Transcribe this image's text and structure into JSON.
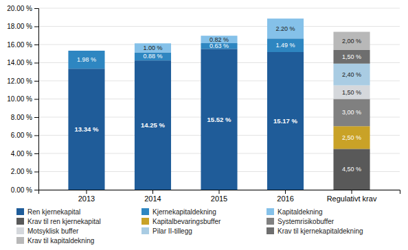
{
  "chart_data": {
    "type": "bar",
    "stacked": true,
    "data_labels": true,
    "grid": true,
    "legend": "bottom",
    "categories": [
      "2013",
      "2014",
      "2015",
      "2016",
      "Regulativt krav"
    ],
    "ylim": [
      0,
      20
    ],
    "yticks": [
      {
        "value": 0,
        "label": "0.00 %"
      },
      {
        "value": 2,
        "label": "2.00 %"
      },
      {
        "value": 4,
        "label": "4.00 %"
      },
      {
        "value": 6,
        "label": "6.00 %"
      },
      {
        "value": 8,
        "label": "8.00 %"
      },
      {
        "value": 10,
        "label": "10.00 %"
      },
      {
        "value": 12,
        "label": "12.00 %"
      },
      {
        "value": 14,
        "label": "14.00 %"
      },
      {
        "value": 16,
        "label": "16.00 %"
      },
      {
        "value": 18,
        "label": "18.00 %"
      },
      {
        "value": 20,
        "label": "20.00 %"
      }
    ],
    "series": [
      {
        "name": "Ren kjernekapital",
        "color": "#1F5C99",
        "values": [
          13.34,
          14.25,
          15.52,
          15.17,
          null
        ],
        "value_labels": [
          "13.34 %",
          "14.25 %",
          "15.52 %",
          "15.17 %",
          null
        ]
      },
      {
        "name": "Kjernekapitaldekning",
        "color": "#2E86C1",
        "values": [
          1.98,
          0.88,
          0.63,
          1.49,
          null
        ],
        "value_labels": [
          "1.98 %",
          "0.88 %",
          "0.63 %",
          "1.49 %",
          null
        ]
      },
      {
        "name": "Kapitaldekning",
        "color": "#85C1E9",
        "values": [
          0,
          1,
          0.82,
          2.2,
          null
        ],
        "value_labels": [
          null,
          "1.00 %",
          "0.82 %",
          "2.20 %",
          null
        ]
      },
      {
        "name": "Krav til ren kjernekapital",
        "color": "#595959",
        "values": [
          null,
          null,
          null,
          null,
          4.5
        ],
        "value_labels": [
          null,
          null,
          null,
          null,
          "4,50 %"
        ]
      },
      {
        "name": "Kapitalbevaringsbuffer",
        "color": "#C9A227",
        "values": [
          null,
          null,
          null,
          null,
          2.5
        ],
        "value_labels": [
          null,
          null,
          null,
          null,
          "2,50 %"
        ]
      },
      {
        "name": "Systemrisikobuffer",
        "color": "#808080",
        "values": [
          null,
          null,
          null,
          null,
          3
        ],
        "value_labels": [
          null,
          null,
          null,
          null,
          "3,00 %"
        ]
      },
      {
        "name": "Motsyklisk buffer",
        "color": "#D5D8DC",
        "values": [
          null,
          null,
          null,
          null,
          1.5
        ],
        "value_labels": [
          null,
          null,
          null,
          null,
          "1,50 %"
        ]
      },
      {
        "name": "Pilar II-tillegg",
        "color": "#A9CCE3",
        "values": [
          null,
          null,
          null,
          null,
          2.4
        ],
        "value_labels": [
          null,
          null,
          null,
          null,
          "2,40 %"
        ]
      },
      {
        "name": "Krav til kjernekapitaldekning",
        "color": "#6E6E6E",
        "values": [
          null,
          null,
          null,
          null,
          1.5
        ],
        "value_labels": [
          null,
          null,
          null,
          null,
          "1,50 %"
        ]
      },
      {
        "name": "Krav til kapitaldekning",
        "color": "#B8B8B8",
        "values": [
          null,
          null,
          null,
          null,
          2
        ],
        "value_labels": [
          null,
          null,
          null,
          null,
          "2,00 %"
        ]
      }
    ]
  }
}
